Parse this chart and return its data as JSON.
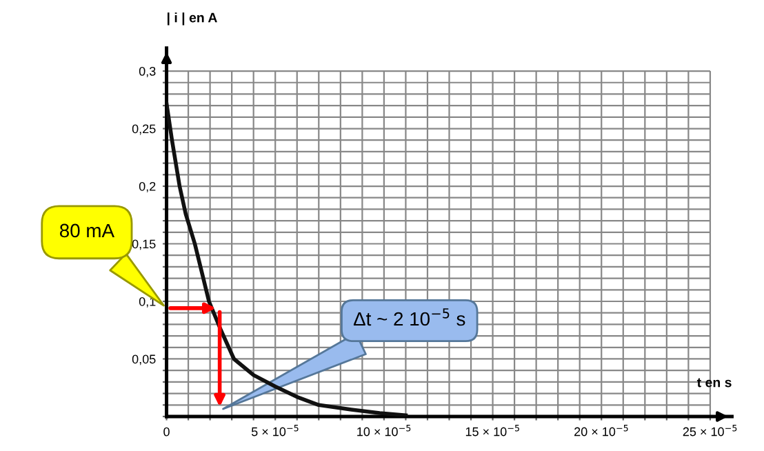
{
  "chart_data": {
    "type": "line",
    "xlabel": "t en s",
    "ylabel": "| i | en A",
    "x": [
      0,
      2.5e-06,
      6e-06,
      8.8e-06,
      1.3e-05,
      1.95e-05,
      2.5e-05,
      3.1e-05,
      4e-05,
      5e-05,
      6e-05,
      7e-05,
      8.5e-05,
      9.8e-05,
      0.00011
    ],
    "series": [
      {
        "color": "#111111",
        "values": [
          0.272,
          0.24,
          0.2,
          0.176,
          0.15,
          0.1,
          0.075,
          0.05,
          0.036,
          0.026,
          0.017,
          0.01,
          0.006,
          0.003,
          0.001
        ]
      }
    ],
    "xlim": [
      0,
      0.00026
    ],
    "ylim": [
      0,
      0.32
    ],
    "xticks": [
      0,
      {
        "value": 1e-05,
        "label": null
      },
      {
        "value": 2e-05,
        "label": null
      },
      {
        "value": 3e-05,
        "label": null
      },
      {
        "value": 4e-05,
        "label": null
      },
      {
        "value": 5e-05,
        "label": "5 × 10$^{−5}$"
      },
      {
        "value": 6e-05,
        "label": null
      },
      {
        "value": 7e-05,
        "label": null
      },
      {
        "value": 8e-05,
        "label": null
      },
      {
        "value": 9e-05,
        "label": null
      },
      {
        "value": 0.0001,
        "label": "10 × 10$^{−5}$"
      },
      {
        "value": 0.00011,
        "label": null
      },
      {
        "value": 0.00012,
        "label": null
      },
      {
        "value": 0.00013,
        "label": null
      },
      {
        "value": 0.00014,
        "label": null
      },
      {
        "value": 0.00015,
        "label": "15 × 10$^{−5}$"
      },
      {
        "value": 0.00016,
        "label": null
      },
      {
        "value": 0.00017,
        "label": null
      },
      {
        "value": 0.00018,
        "label": null
      },
      {
        "value": 0.00019,
        "label": null
      },
      {
        "value": 0.0002,
        "label": "20 × 10$^{−5}$"
      },
      {
        "value": 0.00021,
        "label": null
      },
      {
        "value": 0.00022,
        "label": null
      },
      {
        "value": 0.00023,
        "label": null
      },
      {
        "value": 0.00024,
        "label": null
      },
      {
        "value": 0.00025,
        "label": "25 × 10$^{−5}$"
      }
    ],
    "yticks": [
      {
        "value": 0,
        "label": null
      },
      {
        "value": 0.01,
        "label": null
      },
      {
        "value": 0.02,
        "label": null
      },
      {
        "value": 0.03,
        "label": null
      },
      {
        "value": 0.04,
        "label": null
      },
      {
        "value": 0.05,
        "label": "0,05"
      },
      {
        "value": 0.06,
        "label": null
      },
      {
        "value": 0.07,
        "label": null
      },
      {
        "value": 0.08,
        "label": null
      },
      {
        "value": 0.09,
        "label": null
      },
      {
        "value": 0.1,
        "label": "0,1"
      },
      {
        "value": 0.11,
        "label": null
      },
      {
        "value": 0.12,
        "label": null
      },
      {
        "value": 0.13,
        "label": null
      },
      {
        "value": 0.14,
        "label": null
      },
      {
        "value": 0.15,
        "label": "0,15"
      },
      {
        "value": 0.16,
        "label": null
      },
      {
        "value": 0.17,
        "label": null
      },
      {
        "value": 0.18,
        "label": null
      },
      {
        "value": 0.19,
        "label": null
      },
      {
        "value": 0.2,
        "label": "0,2"
      },
      {
        "value": 0.21,
        "label": null
      },
      {
        "value": 0.22,
        "label": null
      },
      {
        "value": 0.23,
        "label": null
      },
      {
        "value": 0.24,
        "label": null
      },
      {
        "value": 0.25,
        "label": "0,25"
      },
      {
        "value": 0.26,
        "label": null
      },
      {
        "value": 0.27,
        "label": null
      },
      {
        "value": 0.28,
        "label": null
      },
      {
        "value": 0.29,
        "label": null
      },
      {
        "value": 0.3,
        "label": "0,3"
      }
    ],
    "grid": true,
    "marker": "none",
    "line_style": "solid",
    "annotations": [
      "80 mA",
      "Δt ~ 2 10$^{−5}$ s"
    ]
  }
}
